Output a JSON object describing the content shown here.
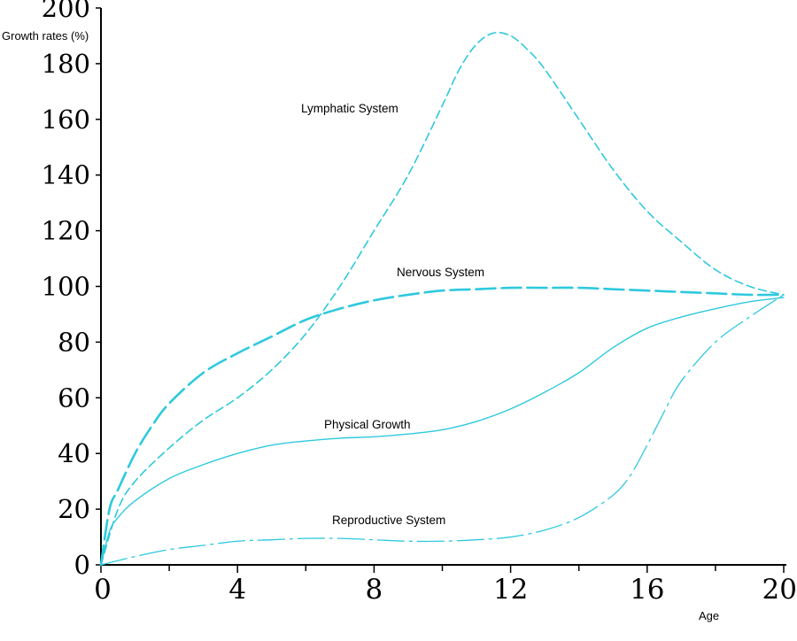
{
  "chart_data": {
    "type": "line",
    "title": "",
    "ylabel": "Growth rates (%)",
    "xlabel": "Age",
    "xlim": [
      0,
      20
    ],
    "ylim": [
      0,
      200
    ],
    "x_ticks": [
      0,
      4,
      8,
      12,
      16,
      20
    ],
    "y_ticks": [
      0,
      20,
      40,
      60,
      80,
      100,
      120,
      140,
      160,
      180,
      200
    ],
    "x_minor_ticks": [
      2,
      6,
      10,
      14,
      18
    ],
    "grid": false,
    "color": "#2ec9dd",
    "series": [
      {
        "name": "Lymphatic System",
        "style": "dashed",
        "x": [
          0,
          0.5,
          1,
          2,
          3,
          4,
          5,
          6,
          7,
          8,
          9,
          10,
          10.5,
          11,
          11.5,
          12,
          12.5,
          13,
          14,
          15,
          16,
          17,
          18,
          19,
          20
        ],
        "y": [
          0,
          20,
          30,
          42,
          52,
          60,
          70,
          83,
          100,
          120,
          140,
          165,
          178,
          187,
          191,
          190,
          185,
          178,
          160,
          142,
          127,
          116,
          106,
          100,
          97
        ]
      },
      {
        "name": "Nervous System",
        "style": "long-dashed",
        "x": [
          0,
          0.25,
          0.5,
          1,
          1.5,
          2,
          3,
          4,
          5,
          6,
          7,
          8,
          9,
          10,
          11,
          12,
          13,
          14,
          15,
          16,
          17,
          18,
          19,
          20
        ],
        "y": [
          0,
          20,
          27,
          40,
          50,
          58,
          69,
          76,
          82,
          88,
          92,
          95,
          97,
          98.5,
          99,
          99.5,
          99.5,
          99.5,
          99,
          98.5,
          98,
          97.5,
          97,
          97
        ]
      },
      {
        "name": "Physical Growth",
        "style": "solid",
        "x": [
          0,
          0.25,
          0.5,
          1,
          2,
          3,
          4,
          5,
          6,
          7,
          8,
          9,
          10,
          11,
          12,
          13,
          14,
          15,
          16,
          17,
          18,
          19,
          20
        ],
        "y": [
          0,
          12,
          17,
          23,
          31,
          36,
          40,
          43,
          44.5,
          45.5,
          46,
          47,
          48.5,
          51.5,
          56,
          62,
          69,
          78,
          85,
          89,
          92,
          94.5,
          96
        ]
      },
      {
        "name": "Reproductive System",
        "style": "dash-dot",
        "x": [
          0,
          1,
          2,
          3,
          4,
          5,
          6,
          7,
          8,
          9,
          10,
          11,
          12,
          13,
          14,
          15,
          15.5,
          16,
          16.5,
          17,
          18,
          19,
          20
        ],
        "y": [
          0,
          3,
          5.5,
          7,
          8.5,
          9,
          9.5,
          9.5,
          9,
          8.5,
          8.5,
          9,
          10,
          12.5,
          17,
          25,
          32,
          43,
          55,
          66,
          80,
          89,
          97
        ]
      }
    ]
  }
}
